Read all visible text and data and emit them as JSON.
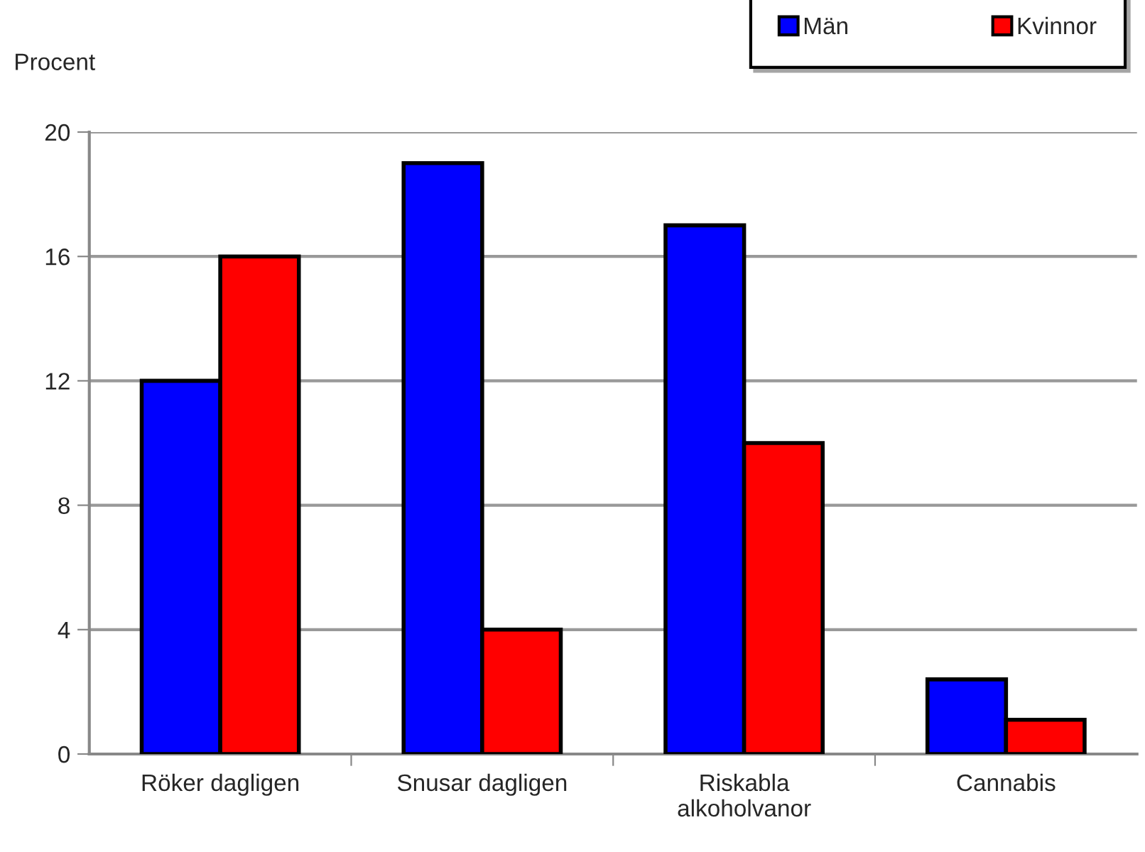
{
  "chart_data": {
    "type": "bar",
    "ylabel": "Procent",
    "categories": [
      "Röker dagligen",
      "Snusar dagligen",
      "Riskabla\nalkoholvanor",
      "Cannabis"
    ],
    "series": [
      {
        "name": "Män",
        "color": "#0000ff",
        "values": [
          12,
          19,
          17,
          2.4
        ]
      },
      {
        "name": "Kvinnor",
        "color": "#ff0000",
        "values": [
          16,
          4,
          10,
          1.1
        ]
      }
    ],
    "ylim": [
      0,
      20
    ],
    "yticks": [
      0,
      4,
      8,
      12,
      16,
      20
    ],
    "grid": "y",
    "legend": "top right"
  }
}
